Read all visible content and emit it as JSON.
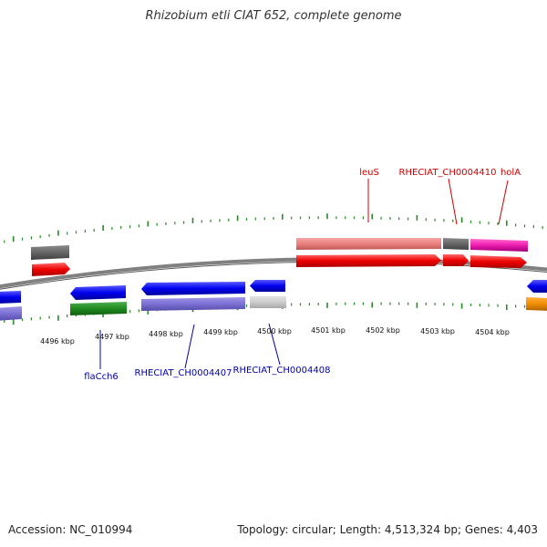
{
  "title": "Rhizobium etli CIAT 652, complete genome",
  "footer": {
    "accession": "Accession: NC_010994",
    "topology": "Topology: circular; Length: 4,513,324 bp; Genes: 4,403"
  },
  "colors": {
    "backbone": "#808080",
    "tick": "#2a8a2a",
    "forward_label": "#cc0000",
    "reverse_label": "#0000aa"
  },
  "scale_labels": [
    "4496 kbp",
    "4497 kbp",
    "4498 kbp",
    "4499 kbp",
    "4500 kbp",
    "4501 kbp",
    "4502 kbp",
    "4503 kbp",
    "4504 kbp"
  ],
  "forward_labels": [
    "leuS",
    "RHECIAT_CH0004410",
    "holA"
  ],
  "reverse_labels": [
    "flaCch6",
    "RHECIAT_CH0004407",
    "RHECIAT_CH0004408"
  ]
}
